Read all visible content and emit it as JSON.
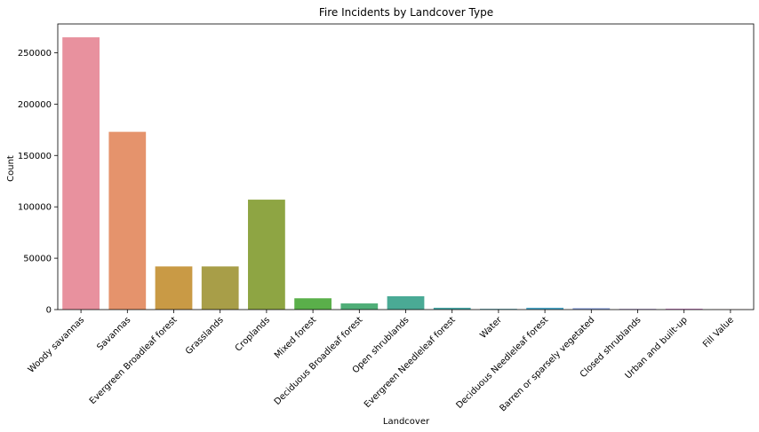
{
  "chart_data": {
    "type": "bar",
    "title": "Fire Incidents by Landcover Type",
    "xlabel": "Landcover",
    "ylabel": "Count",
    "ylim": [
      0,
      278000
    ],
    "yticks": [
      0,
      50000,
      100000,
      150000,
      200000,
      250000
    ],
    "ytick_labels": [
      "0",
      "50000",
      "100000",
      "150000",
      "200000",
      "250000"
    ],
    "grid": false,
    "categories": [
      "Woody savannas",
      "Savannas",
      "Evergreen Broadleaf forest",
      "Grasslands",
      "Croplands",
      "Mixed forest",
      "Deciduous Broadleaf forest",
      "Open shrublands",
      "Evergreen Needleleaf forest",
      "Water",
      "Deciduous Needleleaf forest",
      "Barren or sparsely vegetated",
      "Closed shrublands",
      "Urban and built-up",
      "Fill Value"
    ],
    "values": [
      265000,
      173000,
      42000,
      42000,
      107000,
      11000,
      6000,
      13000,
      1800,
      700,
      1800,
      1400,
      700,
      900,
      150
    ],
    "colors": [
      "#e8919e",
      "#e5936c",
      "#c99a45",
      "#a89e48",
      "#8ea543",
      "#5aaf4a",
      "#4fae77",
      "#4aaa95",
      "#48a8a6",
      "#4aa8b7",
      "#4ba6c8",
      "#8aa0d8",
      "#b595d5",
      "#d88bd0",
      "#e88fb2"
    ]
  }
}
